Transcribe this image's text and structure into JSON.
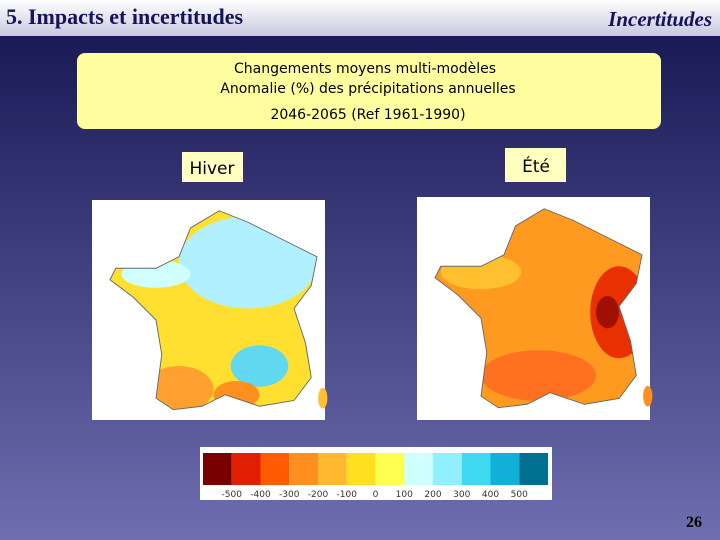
{
  "header": {
    "title": "5. Impacts et incertitudes",
    "section": "Incertitudes"
  },
  "box": {
    "lines": [
      "Changements moyens multi-modèles",
      "Anomalie (%) des précipitations annuelles",
      "2046-2065  (Ref 1961-1990)"
    ]
  },
  "labels": {
    "winter": "Hiver",
    "summer": "Été"
  },
  "legend": {
    "colors": [
      "#7a0000",
      "#e01e00",
      "#ff5a00",
      "#ff9020",
      "#ffb830",
      "#ffe020",
      "#ffff50",
      "#d0ffff",
      "#90f0ff",
      "#40d8f0",
      "#10b0d8",
      "#007090"
    ],
    "ticks": [
      -500,
      -400,
      -300,
      -200,
      -100,
      0,
      100,
      200,
      300,
      400,
      500
    ]
  },
  "footer": {
    "page_number": "26"
  }
}
